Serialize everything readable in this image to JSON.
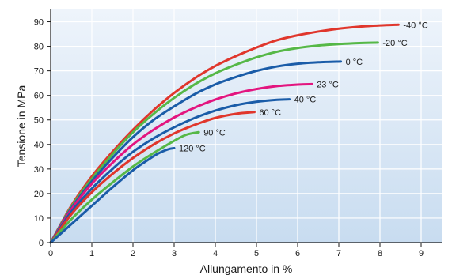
{
  "chart_data": {
    "type": "line",
    "title": "",
    "xlabel": "Allungamento in %",
    "ylabel": "Tensione in MPa",
    "xlim": [
      0,
      9.5
    ],
    "ylim": [
      0,
      95
    ],
    "xticks": [
      0,
      1,
      2,
      3,
      4,
      5,
      6,
      7,
      8,
      9
    ],
    "yticks": [
      0,
      10,
      20,
      30,
      40,
      50,
      60,
      70,
      80,
      90
    ],
    "grid": true,
    "legend": "inline labels at line ends",
    "series": [
      {
        "name": "-40 °C",
        "color": "#e0362c",
        "x": [
          0,
          0.5,
          1,
          1.5,
          2,
          2.5,
          3,
          3.5,
          4,
          4.5,
          5,
          5.5,
          6,
          6.5,
          7,
          7.5,
          8,
          8.45
        ],
        "y": [
          0,
          15,
          27,
          37,
          46,
          54,
          61,
          67,
          72,
          76,
          79.5,
          82.5,
          84.5,
          86,
          87.2,
          88,
          88.5,
          88.8
        ]
      },
      {
        "name": "-20 °C",
        "color": "#56b847",
        "x": [
          0,
          0.5,
          1,
          1.5,
          2,
          2.5,
          3,
          3.5,
          4,
          4.5,
          5,
          5.5,
          6,
          6.5,
          7,
          7.5,
          7.95
        ],
        "y": [
          0,
          14.5,
          26,
          36,
          45,
          52.5,
          59,
          64.5,
          69,
          72.5,
          75.5,
          77.8,
          79.3,
          80.3,
          80.9,
          81.3,
          81.5
        ]
      },
      {
        "name": "0 °C",
        "color": "#1a5ca8",
        "x": [
          0,
          0.5,
          1,
          1.5,
          2,
          2.5,
          3,
          3.5,
          4,
          4.5,
          5,
          5.5,
          6,
          6.5,
          7.05
        ],
        "y": [
          0,
          14,
          25,
          34.5,
          43,
          50,
          55.5,
          60.5,
          64.5,
          67.5,
          70,
          71.8,
          72.9,
          73.5,
          73.8
        ]
      },
      {
        "name": "23 °C",
        "color": "#e3157f",
        "x": [
          0,
          0.5,
          1,
          1.5,
          2,
          2.5,
          3,
          3.5,
          4,
          4.5,
          5,
          5.5,
          6,
          6.35
        ],
        "y": [
          0,
          13.5,
          24,
          32.5,
          40,
          46,
          51,
          55,
          58.3,
          60.8,
          62.6,
          63.8,
          64.4,
          64.6
        ]
      },
      {
        "name": "40 °C",
        "color": "#1a5ca8",
        "x": [
          0,
          0.5,
          1,
          1.5,
          2,
          2.5,
          3,
          3.5,
          4,
          4.5,
          5,
          5.5,
          5.8
        ],
        "y": [
          0,
          12.5,
          22,
          30,
          37,
          42.5,
          47,
          50.8,
          53.8,
          56,
          57.4,
          58.2,
          58.4
        ]
      },
      {
        "name": "60 °C",
        "color": "#e0362c",
        "x": [
          0,
          0.5,
          1,
          1.5,
          2,
          2.5,
          3,
          3.5,
          4,
          4.5,
          4.95
        ],
        "y": [
          0,
          11.5,
          20.5,
          28,
          34.5,
          40,
          44.5,
          48,
          50.8,
          52.5,
          53.2
        ]
      },
      {
        "name": "90 °C",
        "color": "#56b847",
        "x": [
          0,
          0.5,
          1,
          1.5,
          2,
          2.5,
          3,
          3.3,
          3.6
        ],
        "y": [
          0,
          9.5,
          17.5,
          24.5,
          31,
          36.5,
          41.5,
          44,
          45
        ]
      },
      {
        "name": "120 °C",
        "color": "#1a5ca8",
        "x": [
          0,
          0.5,
          1,
          1.5,
          2,
          2.3,
          2.6,
          2.85,
          3.0
        ],
        "y": [
          0,
          7.5,
          15,
          22.5,
          29.5,
          33,
          36.2,
          38,
          38.5
        ]
      }
    ],
    "colors": {
      "plot_bg_top": "#eef4fb",
      "plot_bg_bottom": "#c8dcf0",
      "grid": "#ffffff",
      "axis": "#1a1a1a"
    }
  }
}
